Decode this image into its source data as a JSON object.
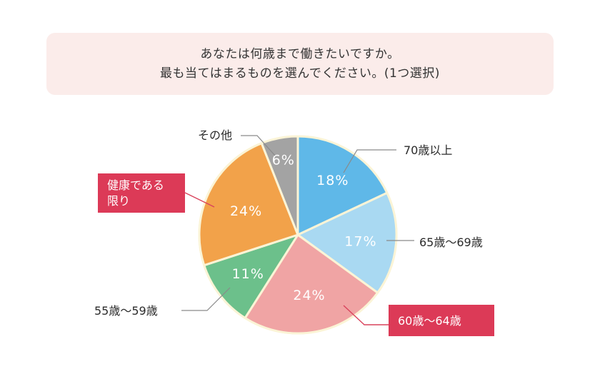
{
  "question": {
    "line1": "あなたは何歳まで働きたいですか。",
    "line2": "最も当てはまるものを選んでください。(1つ選択)"
  },
  "chart_data": {
    "type": "pie",
    "start_angle_deg": 0,
    "direction": "clockwise",
    "slices": [
      {
        "label": "70歳以上",
        "value": 18,
        "display": "18%",
        "color": "#5fb8e8",
        "highlight": false
      },
      {
        "label": "65歳〜69歳",
        "value": 17,
        "display": "17%",
        "color": "#a9d9f2",
        "highlight": false
      },
      {
        "label": "60歳〜64歳",
        "value": 24,
        "display": "24%",
        "color": "#f0a4a4",
        "highlight": true
      },
      {
        "label": "55歳〜59歳",
        "value": 11,
        "display": "11%",
        "color": "#6cc08b",
        "highlight": false
      },
      {
        "label": "健康である限り",
        "label_lines": [
          "健康である",
          "限り"
        ],
        "value": 24,
        "display": "24%",
        "color": "#f2a24a",
        "highlight": true
      },
      {
        "label": "その他",
        "value": 6,
        "display": "6%",
        "color": "#a3a3a3",
        "highlight": false
      }
    ],
    "highlight_color": "#dc3a57",
    "outline_color": "#fbf4d6"
  }
}
